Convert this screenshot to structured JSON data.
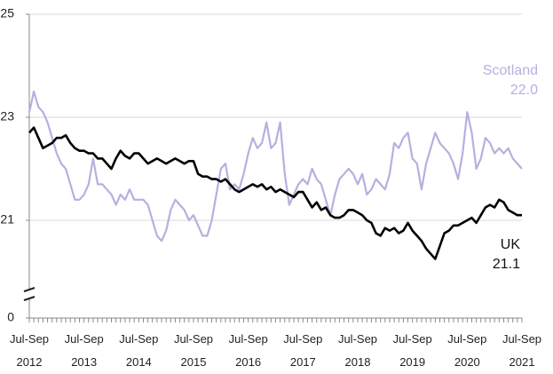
{
  "chart_data": {
    "type": "line",
    "categories": [
      "Jul-Sep 2012",
      null,
      null,
      null,
      null,
      null,
      null,
      null,
      null,
      null,
      null,
      null,
      "Jul-Sep 2013",
      null,
      null,
      null,
      null,
      null,
      null,
      null,
      null,
      null,
      null,
      null,
      "Jul-Sep 2014",
      null,
      null,
      null,
      null,
      null,
      null,
      null,
      null,
      null,
      null,
      null,
      "Jul-Sep 2015",
      null,
      null,
      null,
      null,
      null,
      null,
      null,
      null,
      null,
      null,
      null,
      "Jul-Sep 2016",
      null,
      null,
      null,
      null,
      null,
      null,
      null,
      null,
      null,
      null,
      null,
      "Jul-Sep 2017",
      null,
      null,
      null,
      null,
      null,
      null,
      null,
      null,
      null,
      null,
      null,
      "Jul-Sep 2018",
      null,
      null,
      null,
      null,
      null,
      null,
      null,
      null,
      null,
      null,
      null,
      "Jul-Sep 2019",
      null,
      null,
      null,
      null,
      null,
      null,
      null,
      null,
      null,
      null,
      null,
      "Jul-Sep 2020",
      null,
      null,
      null,
      null,
      null,
      null,
      null,
      null,
      null,
      null,
      null,
      "Jul-Sep 2021"
    ],
    "series": [
      {
        "name": "Scotland",
        "color": "#b9aee0",
        "end_label": "22.0",
        "values": [
          23.1,
          23.5,
          23.2,
          23.1,
          22.9,
          22.6,
          22.3,
          22.1,
          22.0,
          21.7,
          21.4,
          21.4,
          21.5,
          21.7,
          22.2,
          21.7,
          21.7,
          21.6,
          21.5,
          21.3,
          21.5,
          21.4,
          21.6,
          21.4,
          21.4,
          21.4,
          21.3,
          21.0,
          20.7,
          20.6,
          20.8,
          21.2,
          21.4,
          21.3,
          21.2,
          21.0,
          21.1,
          20.9,
          20.7,
          20.7,
          21.0,
          21.5,
          22.0,
          22.1,
          21.6,
          21.7,
          21.6,
          21.9,
          22.3,
          22.6,
          22.4,
          22.5,
          22.9,
          22.4,
          22.5,
          22.9,
          21.9,
          21.3,
          21.5,
          21.7,
          21.8,
          21.7,
          22.0,
          21.8,
          21.7,
          21.4,
          21.1,
          21.5,
          21.8,
          21.9,
          22.0,
          21.9,
          21.7,
          21.9,
          21.5,
          21.6,
          21.8,
          21.7,
          21.6,
          21.9,
          22.5,
          22.4,
          22.6,
          22.7,
          22.2,
          22.1,
          21.6,
          22.1,
          22.4,
          22.7,
          22.5,
          22.4,
          22.3,
          22.1,
          21.8,
          22.3,
          23.1,
          22.7,
          22.0,
          22.2,
          22.6,
          22.5,
          22.3,
          22.4,
          22.3,
          22.4,
          22.2,
          22.1,
          22.0
        ]
      },
      {
        "name": "UK",
        "color": "#000000",
        "end_label": "21.1",
        "values": [
          22.7,
          22.8,
          22.6,
          22.4,
          22.45,
          22.5,
          22.6,
          22.6,
          22.65,
          22.5,
          22.4,
          22.35,
          22.35,
          22.3,
          22.3,
          22.2,
          22.2,
          22.1,
          22.0,
          22.2,
          22.35,
          22.25,
          22.2,
          22.3,
          22.3,
          22.2,
          22.1,
          22.15,
          22.2,
          22.15,
          22.1,
          22.15,
          22.2,
          22.15,
          22.1,
          22.15,
          22.15,
          21.9,
          21.85,
          21.85,
          21.8,
          21.8,
          21.75,
          21.8,
          21.7,
          21.6,
          21.55,
          21.6,
          21.65,
          21.7,
          21.65,
          21.7,
          21.6,
          21.65,
          21.55,
          21.6,
          21.55,
          21.5,
          21.45,
          21.55,
          21.55,
          21.4,
          21.25,
          21.35,
          21.2,
          21.25,
          21.1,
          21.05,
          21.05,
          21.1,
          21.2,
          21.2,
          21.15,
          21.1,
          21.0,
          20.95,
          20.75,
          20.7,
          20.85,
          20.8,
          20.85,
          20.75,
          20.8,
          20.95,
          20.8,
          20.7,
          20.6,
          20.45,
          20.35,
          20.25,
          20.5,
          20.75,
          20.8,
          20.9,
          20.9,
          20.95,
          21.0,
          21.05,
          20.95,
          21.1,
          21.25,
          21.3,
          21.25,
          21.4,
          21.35,
          21.2,
          21.15,
          21.1,
          21.1
        ]
      }
    ],
    "ylim": [
      0,
      25
    ],
    "yticks": [
      0,
      21,
      23,
      25
    ],
    "y_axis_break": true,
    "grid": true
  }
}
